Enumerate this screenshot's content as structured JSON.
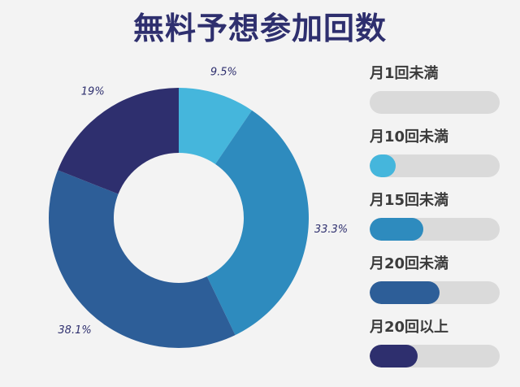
{
  "title": "無料予想参加回数",
  "chart_data": {
    "type": "pie",
    "hole": true,
    "categories": [
      "月1回未満",
      "月10回未満",
      "月15回未満",
      "月20回未満",
      "月20回以上"
    ],
    "values": [
      0,
      9.5,
      33.3,
      38.1,
      19
    ],
    "labels": [
      "9.5%",
      "33.3%",
      "38.1%",
      "19%"
    ],
    "colors": [
      "#d9d9d9",
      "#45b6dc",
      "#2e8bbe",
      "#2d5e98",
      "#2e2f6e"
    ],
    "legend_position": "right"
  },
  "legend": [
    {
      "label": "月1回未満",
      "color": "#d9d9d9",
      "fill_fraction": 0
    },
    {
      "label": "月10回未満",
      "color": "#45b6dc",
      "fill_fraction": 0.2
    },
    {
      "label": "月15回未満",
      "color": "#2e8bbe",
      "fill_fraction": 0.41
    },
    {
      "label": "月20回未満",
      "color": "#2d5e98",
      "fill_fraction": 0.54
    },
    {
      "label": "月20回以上",
      "color": "#2e2f6e",
      "fill_fraction": 0.37
    }
  ]
}
